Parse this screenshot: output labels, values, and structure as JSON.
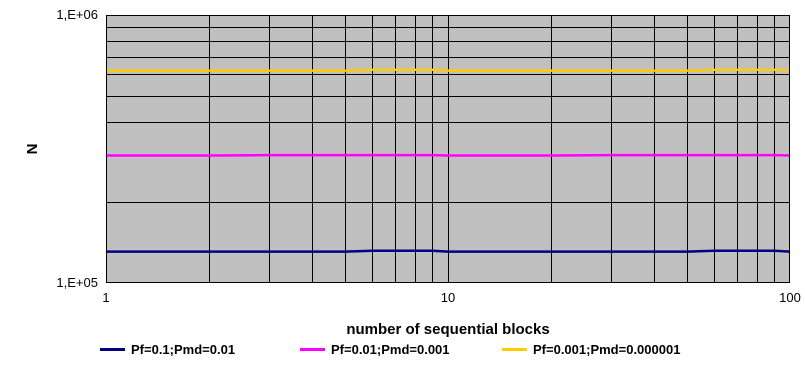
{
  "chart_data": {
    "type": "line",
    "title": "",
    "xlabel": "number of sequential blocks",
    "ylabel": "N",
    "x_scale": "log",
    "y_scale": "log",
    "xlim": [
      1,
      100
    ],
    "ylim": [
      100000,
      1000000
    ],
    "x_tick_labels": [
      "1",
      "10",
      "100"
    ],
    "y_tick_labels": [
      "1,E+05",
      "1,E+06"
    ],
    "grid": true,
    "plot_background": "#c0c0c0",
    "legend_position": "bottom",
    "x": [
      1,
      2,
      3,
      4,
      5,
      6,
      7,
      8,
      9,
      10,
      20,
      30,
      40,
      50,
      60,
      70,
      80,
      90,
      100
    ],
    "series": [
      {
        "name": "Pf=0.1;Pmd=0.01",
        "color": "#000080",
        "values": [
          131000,
          131000,
          131000,
          131000,
          131000,
          132000,
          132000,
          132000,
          132000,
          131000,
          131000,
          131000,
          131000,
          131000,
          132000,
          132000,
          132000,
          132000,
          131000
        ]
      },
      {
        "name": "Pf=0.01;Pmd=0.001",
        "color": "#ff00ff",
        "values": [
          299000,
          299000,
          300000,
          300000,
          300000,
          300000,
          300000,
          300000,
          300000,
          299000,
          299000,
          300000,
          300000,
          300000,
          300000,
          300000,
          300000,
          300000,
          299000
        ]
      },
      {
        "name": "Pf=0.001;Pmd=0.000001",
        "color": "#ffcc00",
        "values": [
          620000,
          620000,
          620000,
          620000,
          620000,
          625000,
          625000,
          625000,
          625000,
          620000,
          620000,
          620000,
          620000,
          620000,
          625000,
          625000,
          625000,
          625000,
          620000
        ]
      }
    ]
  }
}
